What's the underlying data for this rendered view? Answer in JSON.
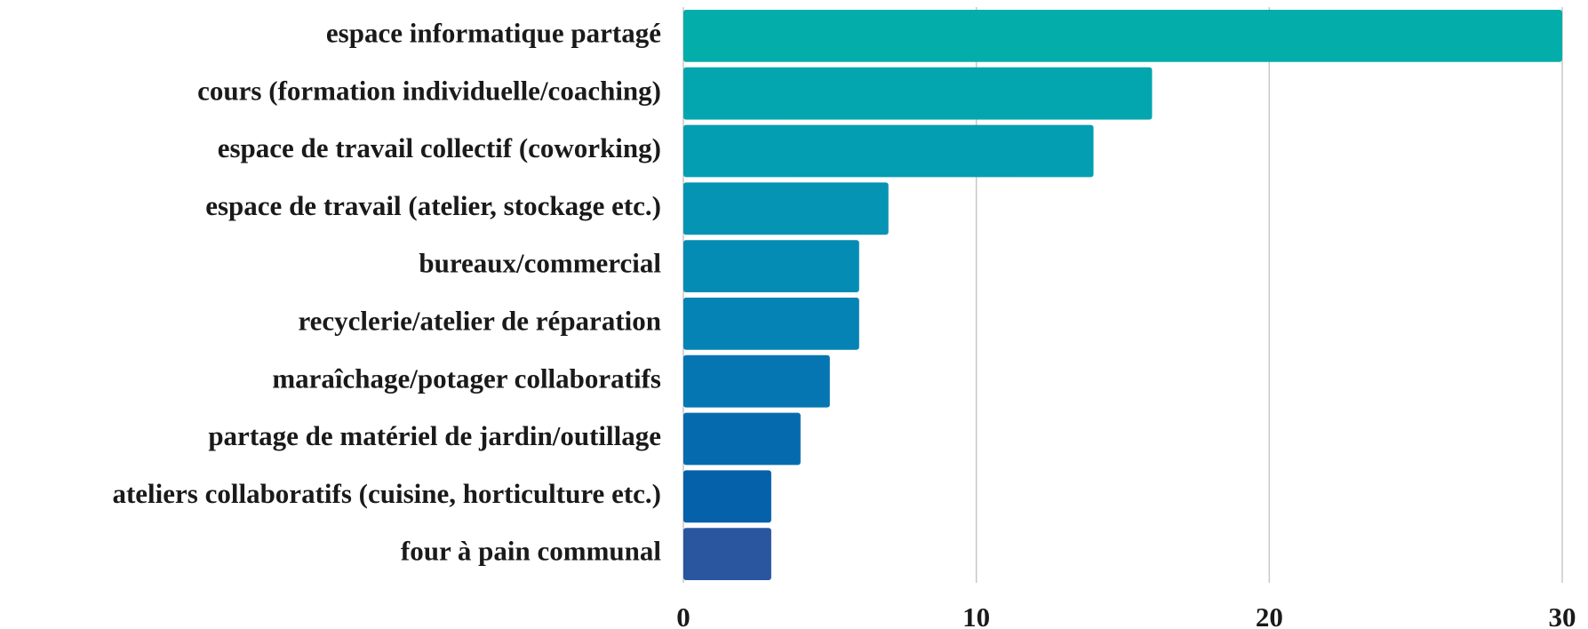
{
  "chart_data": {
    "type": "hbar",
    "categories": [
      "espace informatique partagé",
      "cours (formation individuelle/coaching)",
      "espace de travail collectif (coworking)",
      "espace de travail (atelier, stockage etc.)",
      "bureaux/commercial",
      "recyclerie/atelier de réparation",
      "maraîchage/potager collaboratifs",
      "partage de matériel de jardin/outillage",
      "ateliers collaboratifs (cuisine, horticulture etc.)",
      "four à pain communal"
    ],
    "values": [
      30,
      16,
      14,
      7,
      6,
      6,
      5,
      4,
      3,
      3
    ],
    "colors": [
      "#03aeaa",
      "#03a6ae",
      "#049eb2",
      "#0594b4",
      "#058cb4",
      "#0583b4",
      "#0676b2",
      "#066bae",
      "#0661ab",
      "#2a56a0"
    ],
    "xlim": [
      0,
      30
    ],
    "xticks": [
      0,
      10,
      20,
      30
    ],
    "grid": true
  }
}
